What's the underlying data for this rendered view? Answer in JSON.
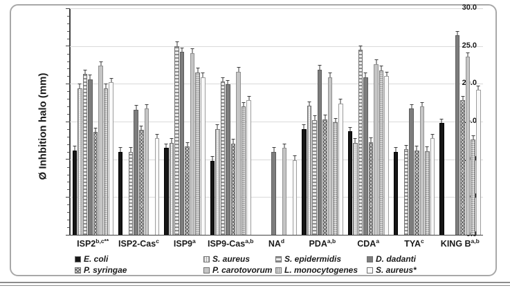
{
  "figure": {
    "y_axis_label": "Ø Inhbition halo (mm)"
  },
  "chart_data": {
    "type": "bar",
    "title": "",
    "xlabel": "",
    "ylabel": "Ø Inhbition halo (mm)",
    "ylim": [
      0,
      30
    ],
    "ytick_step": 5,
    "ytick_labels": [
      "0.0",
      "5.0",
      "10.0",
      "15.0",
      "20.0",
      "25.0",
      "30.0"
    ],
    "minor_tick_step": 1,
    "grid": true,
    "legend_position": "bottom",
    "error_bar_default": 0.5,
    "categories": [
      "ISP2",
      "ISP2-Cas",
      "ISP9",
      "ISP9-Cas",
      "NA",
      "PDA",
      "CDA",
      "TYA",
      "KING B"
    ],
    "category_superscripts": [
      "b,c**",
      "c",
      "a",
      "a,b",
      "d",
      "a,b",
      "a",
      "c",
      "a,b"
    ],
    "series": [
      {
        "name": "E. coli",
        "pattern": "solid-black",
        "values": [
          11.2,
          11.0,
          11.5,
          9.8,
          null,
          14.0,
          13.7,
          11.0,
          14.8
        ]
      },
      {
        "name": "S. aureus",
        "pattern": "vertical-dots",
        "values": [
          19.4,
          null,
          12.2,
          14.0,
          null,
          17.1,
          12.2,
          null,
          null
        ]
      },
      {
        "name": "S. epidermidis",
        "pattern": "horizontal-stripes",
        "values": [
          21.3,
          11.0,
          25.0,
          20.3,
          null,
          15.2,
          24.5,
          11.3,
          null
        ]
      },
      {
        "name": "D. dadanti",
        "pattern": "solid-darkgray",
        "values": [
          20.6,
          16.6,
          24.2,
          19.9,
          11.0,
          21.9,
          20.9,
          16.7,
          26.4
        ]
      },
      {
        "name": "P. syringae",
        "pattern": "checkered",
        "values": [
          13.6,
          13.9,
          11.7,
          12.1,
          null,
          15.3,
          12.3,
          11.2,
          17.8
        ]
      },
      {
        "name": "P. carotovorum",
        "pattern": "solid-lightgray",
        "values": [
          22.4,
          16.7,
          24.1,
          21.6,
          11.5,
          20.9,
          22.6,
          17.0,
          23.6
        ]
      },
      {
        "name": "L. monocytogenes",
        "pattern": "dots",
        "values": [
          19.4,
          null,
          21.5,
          17.0,
          null,
          14.9,
          21.8,
          11.1,
          12.6
        ]
      },
      {
        "name": "S. aureus*",
        "pattern": "solid-white",
        "values": [
          20.2,
          12.8,
          20.9,
          17.8,
          9.9,
          17.4,
          21.0,
          12.8,
          19.2
        ]
      }
    ],
    "colors": {
      "bar_black": "#161616",
      "bar_darkgray": "#7d7d7d",
      "bar_lightgray": "#c5c5c5",
      "bar_white": "#f9f9f9",
      "gridline": "#d9d9d9",
      "axis": "#404040",
      "text": "#1a1a1a",
      "frame_border": "#a8a8a8"
    }
  }
}
